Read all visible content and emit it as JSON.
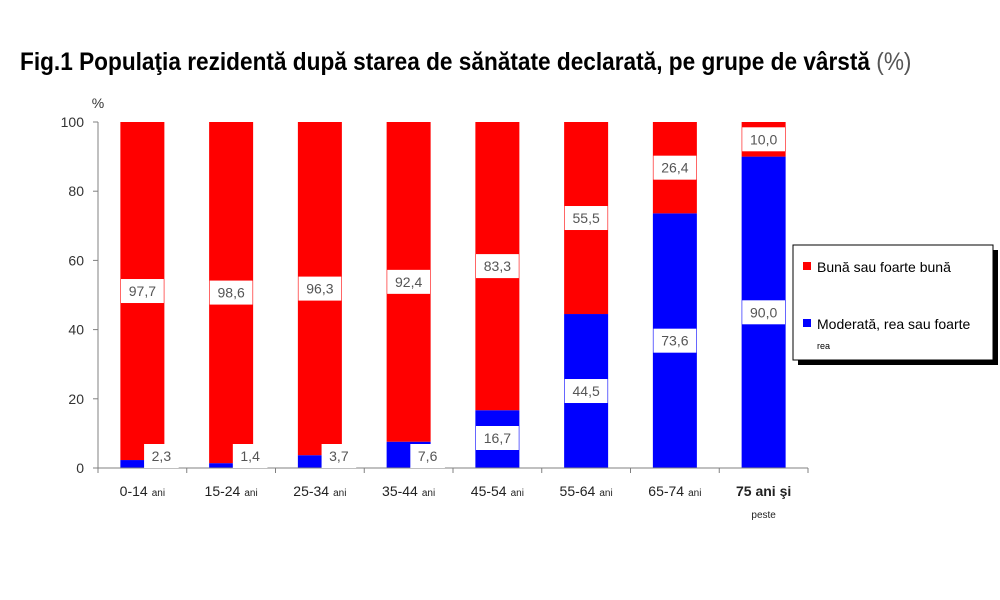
{
  "title": "Fig.1 Populaţia rezidentă după starea de sănătate declarată, pe grupe de vârstă",
  "title_unit": "(%)",
  "chart_data": {
    "type": "bar",
    "stacked": true,
    "title": "Fig.1 Populaţia rezidentă după starea de sănătate declarată, pe grupe de vârstă (%)",
    "ylabel": "%",
    "ylim": [
      0,
      100
    ],
    "yticks": [
      0,
      20,
      40,
      60,
      80,
      100
    ],
    "grid": false,
    "legend_position": "right",
    "categories": [
      {
        "main": "0-14",
        "suffix": "ani",
        "sub": ""
      },
      {
        "main": "15-24",
        "suffix": "ani",
        "sub": ""
      },
      {
        "main": "25-34",
        "suffix": "ani",
        "sub": ""
      },
      {
        "main": "35-44",
        "suffix": "ani",
        "sub": ""
      },
      {
        "main": "45-54",
        "suffix": "ani",
        "sub": ""
      },
      {
        "main": "55-64",
        "suffix": "ani",
        "sub": ""
      },
      {
        "main": "65-74",
        "suffix": "ani",
        "sub": ""
      },
      {
        "main": "75 ani şi",
        "suffix": "",
        "sub": "peste",
        "bold": true
      }
    ],
    "series": [
      {
        "name": "Moderată, rea sau foarte",
        "name_line2": "rea",
        "color": "#0000ff",
        "values": [
          2.3,
          1.4,
          3.7,
          7.6,
          16.7,
          44.5,
          73.6,
          90.0
        ],
        "labels": [
          "2,3",
          "1,4",
          "3,7",
          "7,6",
          "16,7",
          "44,5",
          "73,6",
          "90,0"
        ]
      },
      {
        "name": "Bună sau foarte bună",
        "name_line2": "",
        "color": "#ff0000",
        "values": [
          97.7,
          98.6,
          96.3,
          92.4,
          83.3,
          55.5,
          26.4,
          10.0
        ],
        "labels": [
          "97,7",
          "98,6",
          "96,3",
          "92,4",
          "83,3",
          "55,5",
          "26,4",
          "10,0"
        ]
      }
    ]
  }
}
